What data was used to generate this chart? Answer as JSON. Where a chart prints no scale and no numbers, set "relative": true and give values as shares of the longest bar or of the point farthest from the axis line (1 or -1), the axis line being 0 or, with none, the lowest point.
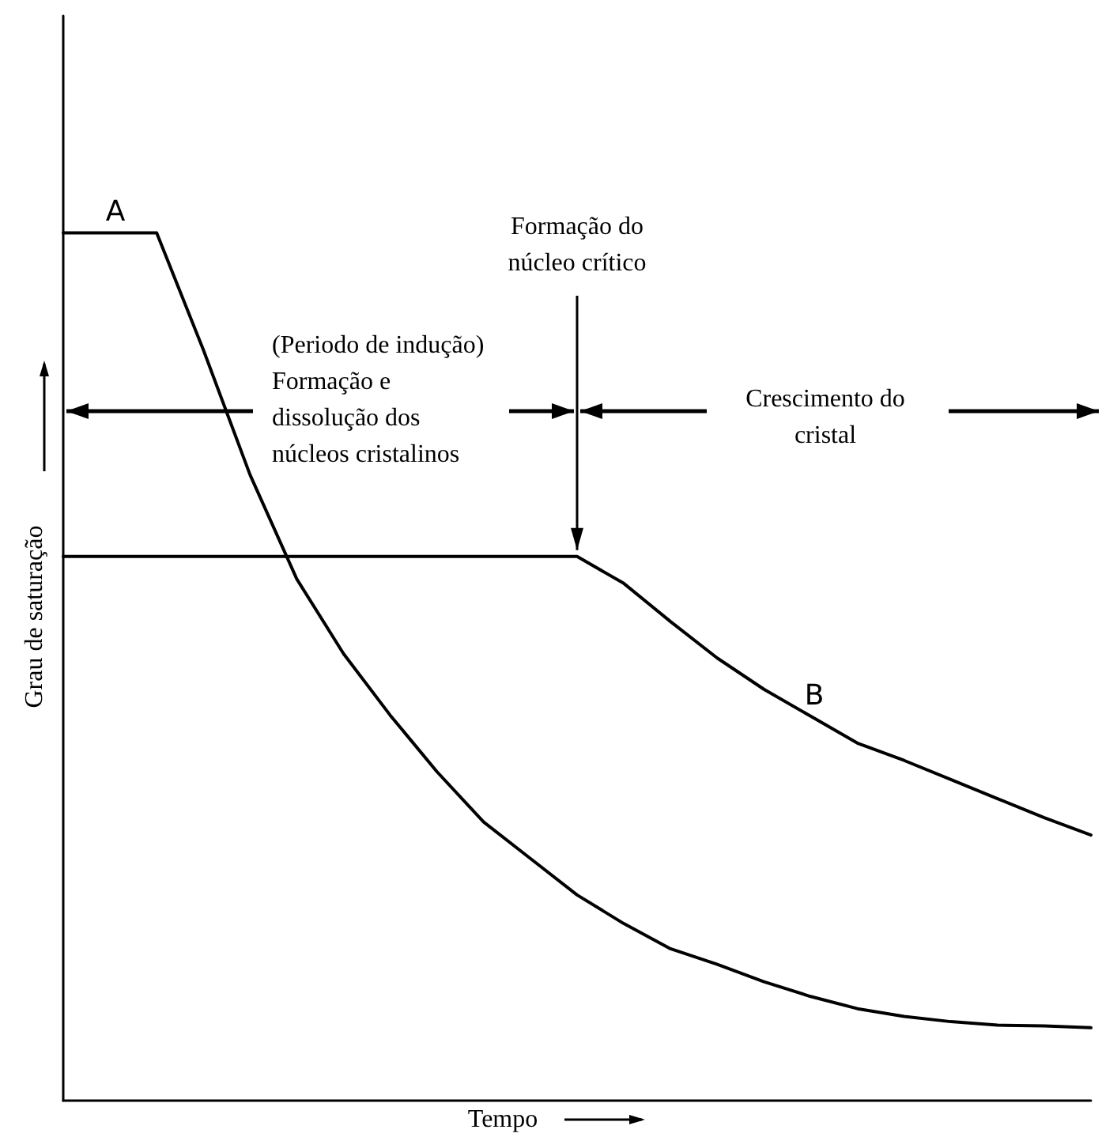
{
  "chart_data": {
    "type": "line",
    "relative": true,
    "xlabel": "Tempo",
    "ylabel": "Grau de saturação",
    "categories": [
      null,
      null,
      null,
      null,
      null,
      null,
      null,
      null,
      null,
      null,
      null,
      null,
      null,
      null,
      null,
      null,
      null,
      null,
      null,
      null,
      null,
      null,
      null
    ],
    "tick_labels": false,
    "grid": false,
    "legend": false,
    "marker": "none",
    "line_style": "solid",
    "series": [
      {
        "name": "A",
        "color": "#000000",
        "values": [
          1,
          1,
          1,
          0.865,
          0.721,
          0.601,
          0.515,
          0.444,
          0.379,
          0.321,
          0.279,
          0.237,
          0.204,
          0.175,
          0.157,
          0.137,
          0.12,
          0.106,
          0.097,
          0.091,
          0.087,
          0.086,
          0.084
        ]
      },
      {
        "name": "B",
        "color": "#000000",
        "values": [
          0.627,
          0.627,
          0.627,
          0.627,
          0.627,
          0.627,
          0.627,
          0.627,
          0.627,
          0.627,
          0.627,
          0.627,
          0.596,
          0.552,
          0.51,
          0.474,
          0.443,
          0.412,
          0.392,
          0.37,
          0.348,
          0.326,
          0.306
        ]
      }
    ],
    "annotations": [
      {
        "text": "Formação do\nnúcleo crítico",
        "y": 0.627
      },
      "(Periodo de indução)\nFormação e\ndissolução dos\nnúcleos cristalinos",
      "Crescimento do\ncristal"
    ]
  }
}
